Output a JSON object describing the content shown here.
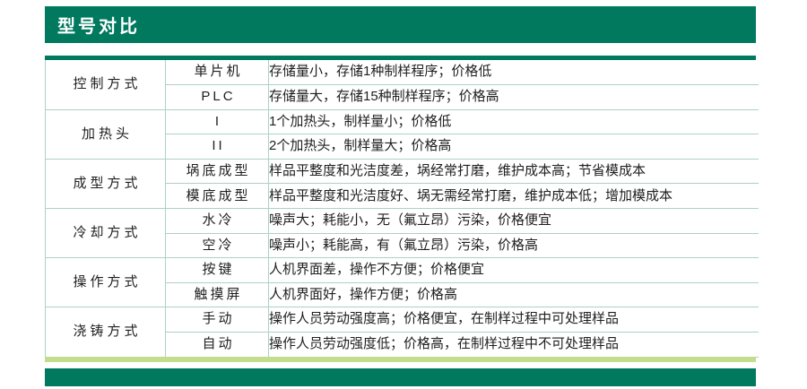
{
  "header": {
    "title": "型号对比"
  },
  "colors": {
    "brand_green": "#00795E",
    "accent_light_green": "#C3DD8E",
    "table_line": "#AED0C8"
  },
  "table": {
    "groups": [
      {
        "category": "控制方式",
        "rows": [
          {
            "type": "单片机",
            "desc": "存储量小，存储1种制样程序；价格低"
          },
          {
            "type": "PLC",
            "desc": "存储量大，存储15种制样程序；价格高"
          }
        ]
      },
      {
        "category": "加热头",
        "rows": [
          {
            "type": "I",
            "desc": "1个加热头，制样量小；价格低"
          },
          {
            "type": "II",
            "desc": "2个加热头，制样量大；价格高"
          }
        ]
      },
      {
        "category": "成型方式",
        "rows": [
          {
            "type": "埚底成型",
            "desc": "样品平整度和光洁度差，埚经常打磨，维护成本高；节省模成本"
          },
          {
            "type": "模底成型",
            "desc": "样品平整度和光洁度好、埚无需经常打磨，维护成本低；增加模成本"
          }
        ]
      },
      {
        "category": "冷却方式",
        "rows": [
          {
            "type": "水冷",
            "desc": "噪声大；耗能小，无（氟立昂）污染，价格便宜"
          },
          {
            "type": "空冷",
            "desc": "噪声小；耗能高，有（氟立昂）污染，价格高"
          }
        ]
      },
      {
        "category": "操作方式",
        "rows": [
          {
            "type": "按键",
            "desc": "人机界面差，操作不方便；价格便宜"
          },
          {
            "type": "触摸屏",
            "desc": "人机界面好，操作方便；价格高"
          }
        ]
      },
      {
        "category": "浇铸方式",
        "rows": [
          {
            "type": "手动",
            "desc": "操作人员劳动强度高；价格便宜，在制样过程中可处理样品"
          },
          {
            "type": "自动",
            "desc": "操作人员劳动强度低；价格高，在制样过程中不可处理样品"
          }
        ]
      }
    ]
  }
}
